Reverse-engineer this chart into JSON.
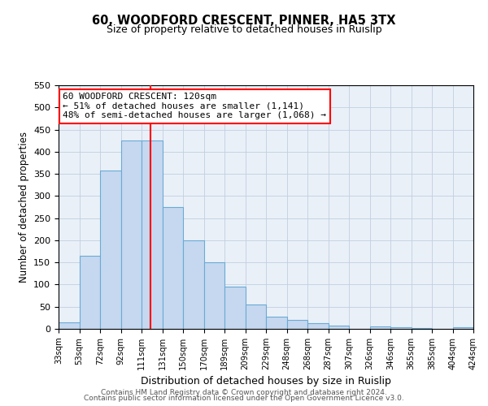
{
  "title": "60, WOODFORD CRESCENT, PINNER, HA5 3TX",
  "subtitle": "Size of property relative to detached houses in Ruislip",
  "xlabel": "Distribution of detached houses by size in Ruislip",
  "ylabel": "Number of detached properties",
  "bin_labels": [
    "33sqm",
    "53sqm",
    "72sqm",
    "92sqm",
    "111sqm",
    "131sqm",
    "150sqm",
    "170sqm",
    "189sqm",
    "209sqm",
    "229sqm",
    "248sqm",
    "268sqm",
    "287sqm",
    "307sqm",
    "326sqm",
    "346sqm",
    "365sqm",
    "385sqm",
    "404sqm",
    "424sqm"
  ],
  "bar_heights": [
    15,
    165,
    357,
    425,
    425,
    275,
    200,
    150,
    95,
    55,
    28,
    20,
    13,
    8,
    0,
    5,
    3,
    1,
    0,
    3
  ],
  "bar_color": "#c5d8f0",
  "bar_edge_color": "#6aaad4",
  "vline_pos": 4.5,
  "vline_color": "red",
  "ylim": [
    0,
    550
  ],
  "yticks": [
    0,
    50,
    100,
    150,
    200,
    250,
    300,
    350,
    400,
    450,
    500,
    550
  ],
  "annotation_title": "60 WOODFORD CRESCENT: 120sqm",
  "annotation_line1": "← 51% of detached houses are smaller (1,141)",
  "annotation_line2": "48% of semi-detached houses are larger (1,068) →",
  "footer_line1": "Contains HM Land Registry data © Crown copyright and database right 2024.",
  "footer_line2": "Contains public sector information licensed under the Open Government Licence v3.0.",
  "background_color": "#eaf0f8",
  "grid_color": "#c0cfe0",
  "n_bars": 20
}
